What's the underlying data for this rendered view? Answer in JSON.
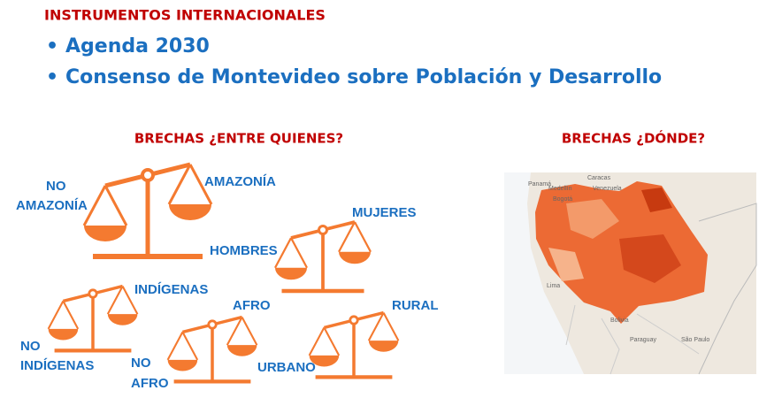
{
  "header": {
    "title": "INSTRUMENTOS INTERNACIONALES",
    "bullets": [
      "Agenda 2030",
      "Consenso de Montevideo sobre Población y Desarrollo"
    ]
  },
  "left_panel": {
    "title": "BRECHAS ¿ENTRE QUIENES?",
    "scales": [
      {
        "left": [
          "NO",
          "AMAZONÍA"
        ],
        "right": [
          "AMAZONÍA"
        ]
      },
      {
        "left": [
          "HOMBRES"
        ],
        "right": [
          "MUJERES"
        ]
      },
      {
        "left": [
          "NO",
          "INDÍGENAS"
        ],
        "right": [
          "INDÍGENAS"
        ]
      },
      {
        "left": [
          "NO",
          "AFRO"
        ],
        "right": [
          "AFRO"
        ]
      },
      {
        "left": [
          "URBANO"
        ],
        "right": [
          "RURAL"
        ]
      }
    ]
  },
  "right_panel": {
    "title": "BRECHAS ¿DÓNDE?",
    "map_labels": [
      "Caracas",
      "Panamá",
      "Medellín",
      "Venezuela",
      "Bogotá",
      "Lima",
      "Bolivia",
      "Paraguay",
      "São Paulo"
    ]
  }
}
